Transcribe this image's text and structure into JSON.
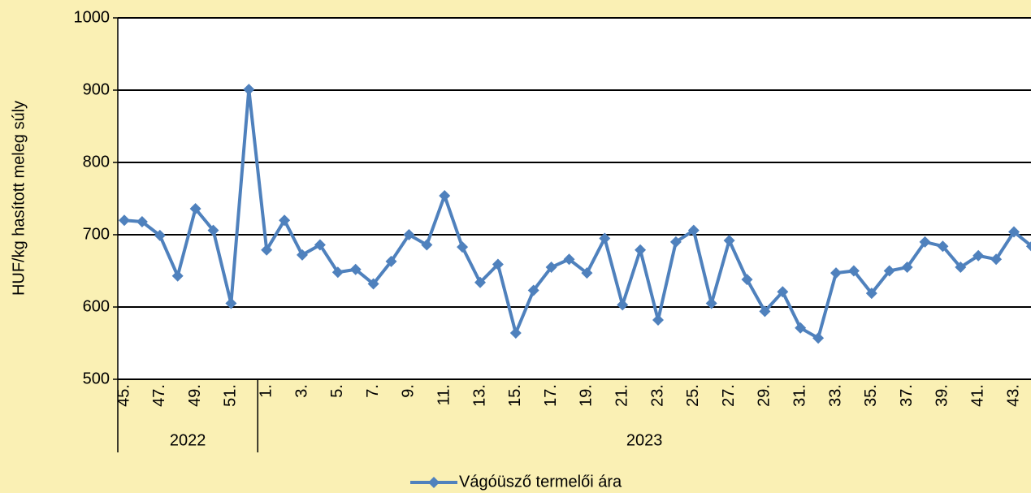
{
  "chart_data": {
    "type": "line",
    "y_label": "HUF/kg hasított meleg súly",
    "categories": [
      "45.",
      null,
      "47.",
      null,
      "49.",
      null,
      "51.",
      null,
      "1.",
      null,
      "3.",
      null,
      "5.",
      null,
      "7.",
      null,
      "9.",
      null,
      "11.",
      null,
      "13.",
      null,
      "15.",
      null,
      "17.",
      null,
      "19.",
      null,
      "21.",
      null,
      "23.",
      null,
      "25.",
      null,
      "27.",
      null,
      "29.",
      null,
      "31.",
      null,
      "33.",
      null,
      "35.",
      null,
      "37.",
      null,
      "39.",
      null,
      "41.",
      null,
      "43.",
      null
    ],
    "groups": [
      {
        "name": "2022",
        "count": 8
      },
      {
        "name": "2023",
        "count": 44
      }
    ],
    "series": [
      {
        "name": "Vágóüsző termelői ára",
        "color": "#4f81bd",
        "values": [
          720,
          718,
          699,
          643,
          736,
          706,
          605,
          901,
          679,
          720,
          672,
          686,
          648,
          652,
          632,
          663,
          700,
          686,
          754,
          683,
          634,
          659,
          564,
          623,
          655,
          666,
          647,
          695,
          603,
          679,
          582,
          690,
          706,
          605,
          692,
          638,
          594,
          621,
          571,
          557,
          647,
          650,
          619,
          650,
          655,
          690,
          684,
          655,
          671,
          666,
          704,
          684
        ]
      }
    ],
    "ylim": [
      500,
      1000
    ],
    "yticks": [
      500,
      600,
      700,
      800,
      900,
      1000
    ],
    "grid": true,
    "legend": "bottom"
  }
}
